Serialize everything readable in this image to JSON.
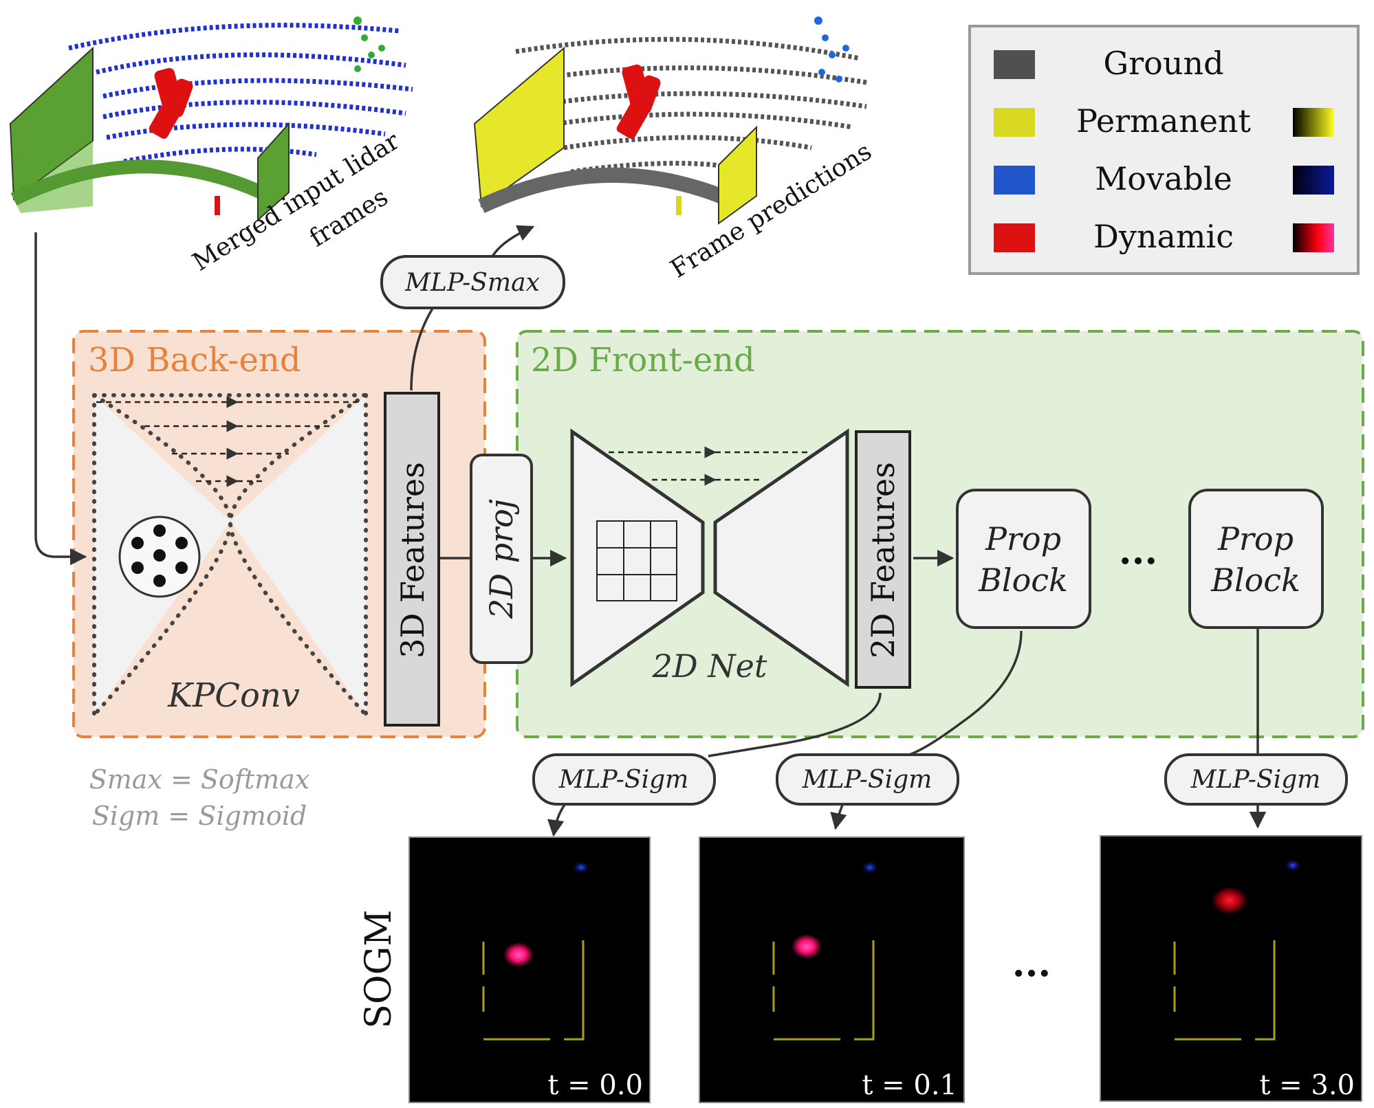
{
  "legend": {
    "items": [
      {
        "label": "Ground",
        "color": "#505050",
        "gradient": false
      },
      {
        "label": "Permanent",
        "color": "#d8d820",
        "gradient": true,
        "grad_from": "#000000",
        "grad_to": "#ffff20"
      },
      {
        "label": "Movable",
        "color": "#2255cc",
        "gradient": true,
        "grad_from": "#000010",
        "grad_to": "#0a1a9a"
      },
      {
        "label": "Dynamic",
        "color": "#dd1111",
        "gradient": true,
        "grad_from": "#000000",
        "grad_to": "#ff2080"
      }
    ]
  },
  "top": {
    "input_caption_line1": "Merged input lidar",
    "input_caption_line2": "frames",
    "pred_caption": "Frame predictions",
    "mlp_smax": "MLP-Smax"
  },
  "backend": {
    "title": "3D Back-end",
    "kpconv": "KPConv",
    "features": "3D Features",
    "color": "#e8813a",
    "fill": "#f8e0d2"
  },
  "proj": {
    "label": "2D proj"
  },
  "frontend": {
    "title": "2D Front-end",
    "net": "2D Net",
    "features": "2D Features",
    "color": "#6aaa48",
    "fill": "#e3f0d9",
    "prop1": {
      "line1": "Prop",
      "line2": "Block"
    },
    "prop2": {
      "line1": "Prop",
      "line2": "Block"
    },
    "ellipsis": "..."
  },
  "notes": {
    "line1": "Smax = Softmax",
    "line2": "Sigm = Sigmoid"
  },
  "heads": [
    "MLP-Sigm",
    "MLP-Sigm",
    "MLP-Sigm"
  ],
  "sogm": {
    "label": "SOGM",
    "ellipsis": "...",
    "panels": [
      {
        "t_label": "t = 0.0"
      },
      {
        "t_label": "t = 0.1"
      },
      {
        "t_label": "t = 3.0"
      }
    ]
  }
}
